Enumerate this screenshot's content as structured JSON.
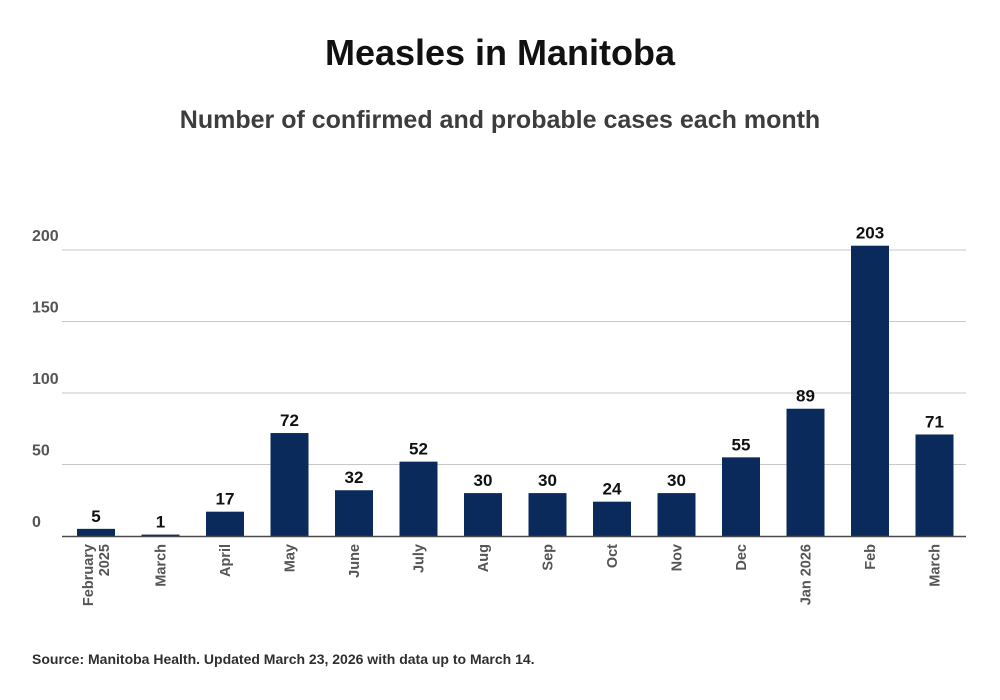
{
  "title": "Measles in Manitoba",
  "subtitle": "Number of confirmed and probable cases each month",
  "source": "Source: Manitoba Health. Updated March 23, 2026 with data up to March 14.",
  "colors": {
    "bar": "#0b2a5c",
    "grid": "#c8c8c8",
    "axis": "#4a4a4a",
    "tick_text": "#555555",
    "label_text": "#111111"
  },
  "chart_data": {
    "type": "bar",
    "title": "Measles in Manitoba",
    "subtitle": "Number of confirmed and probable cases each month",
    "xlabel": "",
    "ylabel": "",
    "categories": [
      [
        "February",
        "2025"
      ],
      [
        "March"
      ],
      [
        "April"
      ],
      [
        "May"
      ],
      [
        "June"
      ],
      [
        "July"
      ],
      [
        "Aug"
      ],
      [
        "Sep"
      ],
      [
        "Oct"
      ],
      [
        "Nov"
      ],
      [
        "Dec"
      ],
      [
        "Jan 2026"
      ],
      [
        "Feb"
      ],
      [
        "March"
      ]
    ],
    "values": [
      5,
      1,
      17,
      72,
      32,
      52,
      30,
      30,
      24,
      30,
      55,
      89,
      203,
      71
    ],
    "ylim": [
      0,
      200
    ],
    "yticks": [
      0,
      50,
      100,
      150,
      200
    ],
    "grid": true,
    "data_labels": true,
    "legend": "none"
  }
}
